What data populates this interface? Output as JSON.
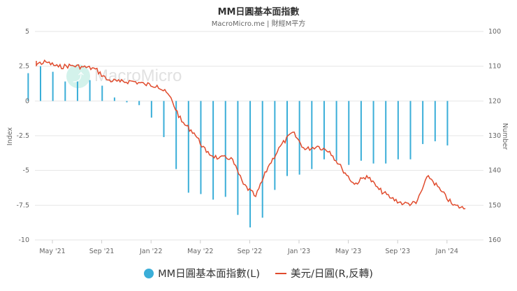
{
  "header": {
    "title": "MM日圓基本面指數",
    "subtitle": "MacroMicro.me | 財經M平方"
  },
  "watermark": {
    "text": "MacroMicro",
    "icon": "chart-trend-icon"
  },
  "legend": [
    {
      "label": "MM日圓基本面指數(L)",
      "color": "#3aaed8",
      "marker": "circle"
    },
    {
      "label": "美元/日圓(R,反轉)",
      "color": "#e04b2d",
      "marker": "line"
    }
  ],
  "chart_data": {
    "type": "bar+line",
    "title": "MM日圓基本面指數",
    "subtitle": "MacroMicro.me | 財經M平方",
    "left_axis": {
      "label": "Index",
      "ticks": [
        "5",
        "2.5",
        "0",
        "-2.5",
        "-5",
        "-7.5",
        "-10"
      ],
      "range": [
        -10,
        5
      ]
    },
    "right_axis": {
      "label": "Number",
      "ticks": [
        "100",
        "110",
        "120",
        "130",
        "140",
        "150",
        "160"
      ],
      "range": [
        100,
        160
      ],
      "reversed": true
    },
    "x_ticks": [
      "May '21",
      "Sep '21",
      "Jan '22",
      "May '22",
      "Sep '22",
      "Jan '23",
      "May '23",
      "Sep '23",
      "Jan '24"
    ],
    "grid": true,
    "legend_position": "bottom",
    "series": [
      {
        "name": "MM日圓基本面指數(L)",
        "type": "bar",
        "axis": "left",
        "x": [
          "2021-04",
          "2021-05",
          "2021-06",
          "2021-07",
          "2021-08",
          "2021-09",
          "2021-10",
          "2021-11",
          "2021-12",
          "2022-01",
          "2022-02",
          "2022-03",
          "2022-04",
          "2022-05",
          "2022-06",
          "2022-07",
          "2022-08",
          "2022-09",
          "2022-10",
          "2022-11",
          "2022-12",
          "2023-01",
          "2023-02",
          "2023-03",
          "2023-04",
          "2023-05",
          "2023-06",
          "2023-07",
          "2023-08",
          "2023-09",
          "2023-10",
          "2023-11",
          "2023-12",
          "2024-01",
          "2024-02"
        ],
        "values": [
          2.0,
          2.5,
          2.1,
          1.4,
          1.4,
          1.5,
          1.1,
          0.25,
          -0.1,
          -0.3,
          -1.2,
          -2.6,
          -4.9,
          -6.6,
          -6.7,
          -7.1,
          -6.9,
          -8.2,
          -9.1,
          -8.4,
          -6.4,
          -5.4,
          -5.3,
          -4.9,
          -4.2,
          -4.3,
          -4.6,
          -4.3,
          -4.5,
          -4.5,
          -4.2,
          -4.2,
          -3.1,
          -2.9,
          -3.2
        ]
      },
      {
        "name": "美元/日圓(R,反轉)",
        "type": "line",
        "axis": "right",
        "x": [
          "2021-03",
          "2021-04",
          "2021-05",
          "2021-06",
          "2021-07",
          "2021-08",
          "2021-09",
          "2021-10",
          "2021-11",
          "2021-12",
          "2022-01",
          "2022-02",
          "2022-03",
          "2022-04",
          "2022-05",
          "2022-06",
          "2022-07",
          "2022-08",
          "2022-09",
          "2022-10",
          "2022-11",
          "2022-12",
          "2023-01",
          "2023-02",
          "2023-03",
          "2023-04",
          "2023-05",
          "2023-06",
          "2023-07",
          "2023-08",
          "2023-09",
          "2023-10",
          "2023-11",
          "2023-12",
          "2024-01",
          "2024-02",
          "2024-03"
        ],
        "values": [
          108.7,
          109.5,
          108.8,
          110.2,
          109.8,
          110.2,
          110.8,
          114.0,
          114.5,
          114.3,
          115.2,
          115.5,
          118.5,
          126.0,
          129.2,
          134.8,
          136.5,
          136.3,
          144.0,
          147.5,
          139.0,
          133.0,
          129.0,
          134.0,
          133.0,
          134.5,
          139.5,
          144.0,
          141.5,
          145.5,
          148.0,
          149.6,
          149.5,
          141.5,
          145.8,
          150.0,
          151.0
        ]
      }
    ]
  }
}
